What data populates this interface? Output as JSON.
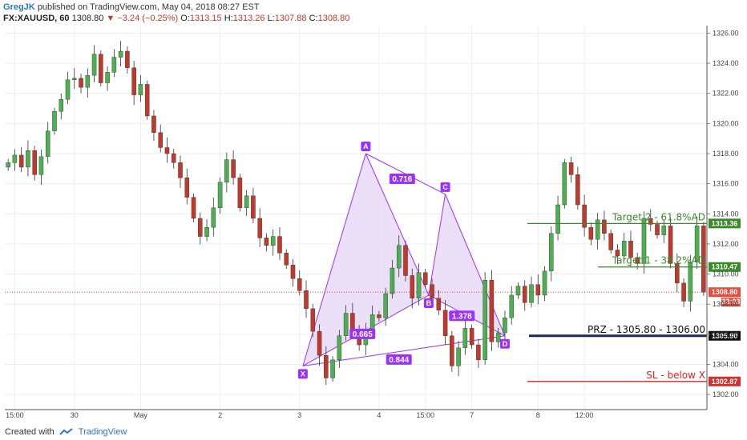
{
  "header": {
    "author": "GregJK",
    "published_text": "published on TradingView.com, May 04, 2018 08:27 EST"
  },
  "quote": {
    "symbol": "FX:XAUUSD, 60",
    "last": "1308.80",
    "change": "−3.24 (−0.25%)",
    "open_label": "O:",
    "open": "1313.15",
    "high_label": "H:",
    "high": "1313.26",
    "low_label": "L:",
    "low": "1307.88",
    "close_label": "C:",
    "close": "1308.80"
  },
  "footer": {
    "created_with": "Created with",
    "brand": "TradingView"
  },
  "colors": {
    "up": "#4caf50",
    "down": "#c0392b",
    "pattern": "#9b30ff",
    "pattern_fill": "#e6d6f5",
    "target": "#3a8a2a",
    "sl": "#e02020",
    "prz": "#111111"
  },
  "chart_data": {
    "type": "candlestick",
    "ylim": [
      1301.0,
      1326.5
    ],
    "y_ticks": [
      "1302.00",
      "1304.00",
      "1306.00",
      "1308.00",
      "1310.00",
      "1312.00",
      "1314.00",
      "1316.00",
      "1318.00",
      "1320.00",
      "1322.00",
      "1324.00",
      "1326.00"
    ],
    "y_tick_values": [
      1302,
      1304,
      1306,
      1308,
      1310,
      1312,
      1314,
      1316,
      1318,
      1320,
      1322,
      1324,
      1326
    ],
    "x_ticks": [
      {
        "label": "15:00",
        "t": 1
      },
      {
        "label": "30",
        "t": 10
      },
      {
        "label": "May",
        "t": 20
      },
      {
        "label": "2",
        "t": 32
      },
      {
        "label": "3",
        "t": 44
      },
      {
        "label": "4",
        "t": 56
      },
      {
        "label": "15:00",
        "t": 63
      },
      {
        "label": "7",
        "t": 70
      },
      {
        "label": "8",
        "t": 80
      },
      {
        "label": "12:00",
        "t": 87
      }
    ],
    "closes": [
      1317.4,
      1317.9,
      1317.1,
      1318.2,
      1316.6,
      1317.8,
      1319.5,
      1320.8,
      1321.6,
      1322.9,
      1323.0,
      1322.4,
      1323.2,
      1324.6,
      1322.7,
      1323.4,
      1324.4,
      1324.8,
      1323.7,
      1321.9,
      1322.6,
      1320.5,
      1319.4,
      1318.4,
      1318.0,
      1317.4,
      1316.4,
      1315.1,
      1313.7,
      1312.5,
      1313.1,
      1314.4,
      1316.1,
      1317.6,
      1316.4,
      1314.4,
      1315.2,
      1313.7,
      1312.4,
      1311.9,
      1312.5,
      1311.4,
      1310.6,
      1309.7,
      1308.9,
      1307.7,
      1306.2,
      1304.6,
      1303.1,
      1304.3,
      1305.9,
      1307.4,
      1306.3,
      1305.3,
      1306.3,
      1307.3,
      1307.1,
      1308.7,
      1310.4,
      1311.9,
      1309.9,
      1308.4,
      1310.1,
      1309.3,
      1308.4,
      1307.6,
      1305.9,
      1303.9,
      1305.1,
      1306.4,
      1305.3,
      1304.3,
      1309.6,
      1305.5,
      1306.1,
      1307.1,
      1308.6,
      1309.2,
      1308.1,
      1309.3,
      1308.6,
      1310.2,
      1312.7,
      1314.6,
      1317.4,
      1316.6,
      1314.6,
      1313.1,
      1312.3,
      1313.6,
      1312.7,
      1311.6,
      1311.2,
      1312.2,
      1311.1,
      1310.7,
      1313.7,
      1313.3,
      1312.6,
      1313.2,
      1310.7,
      1309.4,
      1308.2,
      1310.8,
      1313.2,
      1308.8
    ],
    "pattern": {
      "points": [
        {
          "label": "X",
          "t": 44.5,
          "price": 1303.9
        },
        {
          "label": "A",
          "t": 54.0,
          "price": 1318.0
        },
        {
          "label": "B",
          "t": 63.5,
          "price": 1308.6
        },
        {
          "label": "C",
          "t": 66.0,
          "price": 1315.3
        },
        {
          "label": "D",
          "t": 75.0,
          "price": 1305.9
        }
      ],
      "ratios": [
        {
          "value": "0.716",
          "t": 59.5,
          "price": 1316.3
        },
        {
          "value": "0.665",
          "t": 53.5,
          "price": 1306.0
        },
        {
          "value": "0.844",
          "t": 59.0,
          "price": 1304.3
        },
        {
          "value": "1.378",
          "t": 68.5,
          "price": 1307.2
        }
      ]
    },
    "levels": [
      {
        "label": "Target 2 - 61.8%AD",
        "price": 1313.36,
        "badge": "1313.36",
        "kind": "target"
      },
      {
        "label": "Target 1 - 38.2%AD",
        "price": 1310.47,
        "badge": "1310.47",
        "kind": "target"
      },
      {
        "label": "PRZ - 1305.80 - 1306.00",
        "price": 1305.9,
        "badge": "1305.90",
        "kind": "prz"
      },
      {
        "label": "SL - below X",
        "price": 1302.87,
        "badge": "1302.87",
        "kind": "sl"
      }
    ],
    "last_price": {
      "price": 1308.8,
      "badge": "1308.80",
      "countdown": "33:03"
    }
  }
}
